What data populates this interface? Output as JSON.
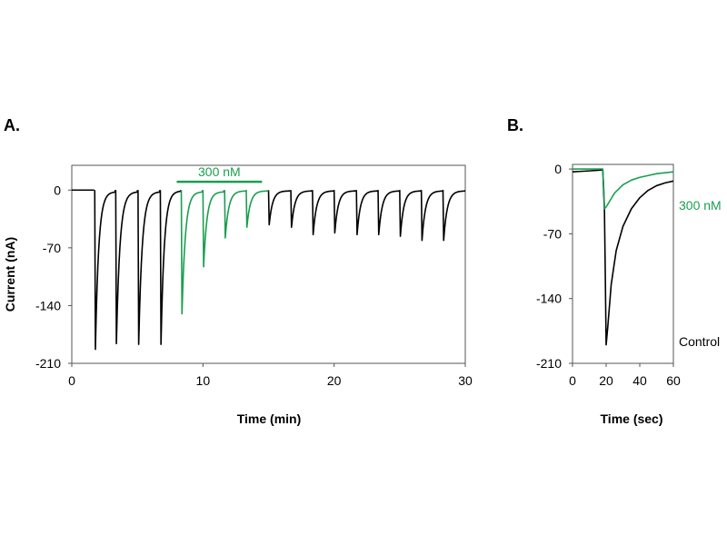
{
  "colors": {
    "control": "#000000",
    "treated": "#1a9e50"
  },
  "chart_data": [
    {
      "type": "line",
      "panel_label": "A.",
      "xlabel": "Time (min)",
      "ylabel": "Current (nA)",
      "xlim": [
        0,
        30
      ],
      "ylim": [
        -210,
        30
      ],
      "xticks": [
        0,
        10,
        20,
        30
      ],
      "yticks": [
        0,
        -70,
        -140,
        -210
      ],
      "grid": false,
      "annotations": [
        {
          "text": "300 nM",
          "type": "bar",
          "x_start": 8,
          "x_end": 14.5,
          "y": 10,
          "color": "treated"
        }
      ],
      "series": [
        {
          "name": "Control",
          "color": "control",
          "baseline": [
            [
              0,
              0
            ],
            [
              1.7,
              0
            ]
          ],
          "pulses": [
            {
              "t": 1.75,
              "peak": -193,
              "end": 3.3,
              "recover": -2
            },
            {
              "t": 3.35,
              "peak": -186,
              "end": 5.0,
              "recover": -2
            },
            {
              "t": 5.05,
              "peak": -187,
              "end": 6.7,
              "recover": -2
            },
            {
              "t": 6.75,
              "peak": -187,
              "end": 8.3,
              "recover": -1
            },
            {
              "t": 15.0,
              "peak": -42,
              "end": 16.6,
              "recover": -1
            },
            {
              "t": 16.7,
              "peak": -45,
              "end": 18.3,
              "recover": -1
            },
            {
              "t": 18.35,
              "peak": -54,
              "end": 20.0,
              "recover": -1
            },
            {
              "t": 20.0,
              "peak": -52,
              "end": 21.6,
              "recover": -1
            },
            {
              "t": 21.7,
              "peak": -54,
              "end": 23.3,
              "recover": -1
            },
            {
              "t": 23.35,
              "peak": -54,
              "end": 25.0,
              "recover": -1
            },
            {
              "t": 25.0,
              "peak": -56,
              "end": 26.6,
              "recover": -1
            },
            {
              "t": 26.65,
              "peak": -61,
              "end": 28.3,
              "recover": -1
            },
            {
              "t": 28.3,
              "peak": -61,
              "end": 30.0,
              "recover": -1
            }
          ]
        },
        {
          "name": "300 nM",
          "color": "treated",
          "pulses": [
            {
              "t": 8.35,
              "peak": -150,
              "end": 9.95,
              "recover": -2
            },
            {
              "t": 10.0,
              "peak": -93,
              "end": 11.6,
              "recover": -2
            },
            {
              "t": 11.65,
              "peak": -58,
              "end": 13.3,
              "recover": -1
            },
            {
              "t": 13.3,
              "peak": -45,
              "end": 14.95,
              "recover": -1
            }
          ]
        }
      ]
    },
    {
      "type": "line",
      "panel_label": "B.",
      "xlabel": "Time (sec)",
      "ylabel": "",
      "xlim": [
        0,
        60
      ],
      "ylim": [
        -210,
        5
      ],
      "xticks": [
        0,
        20,
        40,
        60
      ],
      "yticks": [
        0,
        -70,
        -140,
        -210
      ],
      "grid": false,
      "series": [
        {
          "name": "Control",
          "label": "Control",
          "color": "control",
          "points": [
            [
              0,
              -3
            ],
            [
              10,
              -2
            ],
            [
              18,
              -1
            ],
            [
              19,
              -45
            ],
            [
              19.5,
              -115
            ],
            [
              20,
              -190
            ],
            [
              21,
              -170
            ],
            [
              23,
              -125
            ],
            [
              26,
              -88
            ],
            [
              30,
              -62
            ],
            [
              35,
              -43
            ],
            [
              40,
              -31
            ],
            [
              45,
              -23
            ],
            [
              50,
              -18
            ],
            [
              55,
              -15
            ],
            [
              60,
              -13
            ]
          ]
        },
        {
          "name": "300 nM",
          "label": "300 nM",
          "color": "treated",
          "points": [
            [
              0,
              0
            ],
            [
              18,
              0
            ],
            [
              18.7,
              -25
            ],
            [
              19,
              -43
            ],
            [
              20,
              -41
            ],
            [
              22,
              -35
            ],
            [
              25,
              -26
            ],
            [
              30,
              -17
            ],
            [
              35,
              -12
            ],
            [
              40,
              -9
            ],
            [
              45,
              -7
            ],
            [
              50,
              -5
            ],
            [
              55,
              -4
            ],
            [
              60,
              -3
            ]
          ]
        }
      ]
    }
  ]
}
